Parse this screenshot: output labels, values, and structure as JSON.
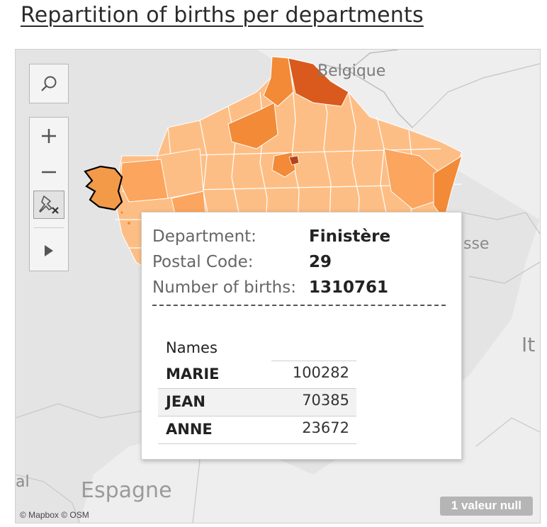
{
  "title": "Repartition of births per departments",
  "map": {
    "labels": {
      "belgique": "Belgique",
      "suisse_fragment": "sse",
      "italie_fragment": "It",
      "espagne": "Espagne",
      "left_fragment": "al"
    },
    "attribution": "© Mapbox © OSM",
    "null_badge": "1 valeur null",
    "colors": {
      "light": "#fdbe85",
      "medium": "#fca55e",
      "strong": "#f28a37",
      "dark": "#d95a1c",
      "selected": "#f39a48"
    }
  },
  "toolbar": {
    "search_icon": "search-icon",
    "zoom_in_icon": "plus-icon",
    "zoom_out_icon": "minus-icon",
    "pin_icon": "pin-off-icon",
    "expand_icon": "play-icon"
  },
  "tooltip": {
    "department_label": "Department:",
    "department_value": "Finistère",
    "postal_label": "Postal Code:",
    "postal_value": "29",
    "births_label": "Number of births:",
    "births_value": "1310761",
    "names_header": "Names",
    "names": [
      {
        "name": "MARIE",
        "count": "100282"
      },
      {
        "name": "JEAN",
        "count": "70385"
      },
      {
        "name": "ANNE",
        "count": "23672"
      }
    ]
  }
}
